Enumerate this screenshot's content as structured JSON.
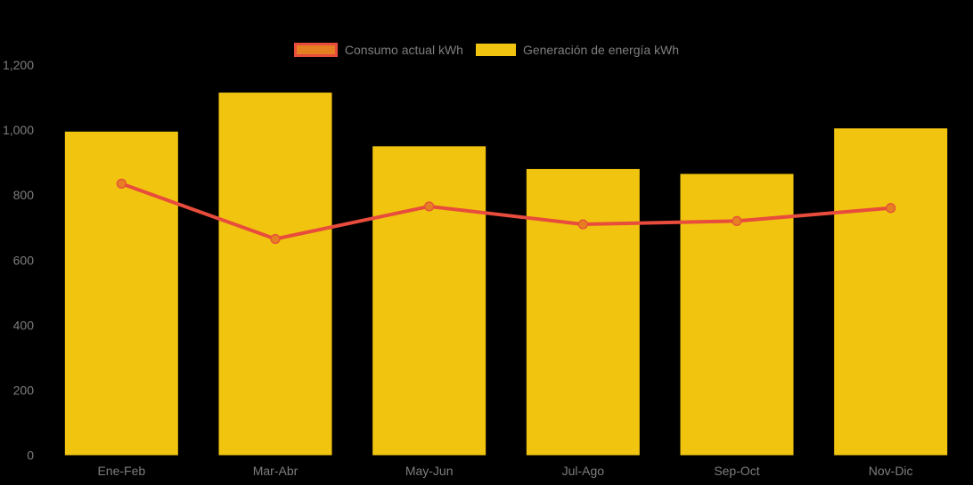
{
  "chart_data": {
    "type": "combo-bar-line",
    "categories": [
      "Ene-Feb",
      "Mar-Abr",
      "May-Jun",
      "Jul-Ago",
      "Sep-Oct",
      "Nov-Dic"
    ],
    "series": [
      {
        "name": "Consumo actual kWh",
        "type": "line",
        "values": [
          835,
          665,
          765,
          710,
          720,
          760
        ],
        "color": "#E74C3C",
        "marker_color": "#E67E22"
      },
      {
        "name": "Generación de energía kWh",
        "type": "bar",
        "values": [
          995,
          1115,
          950,
          880,
          865,
          1005
        ],
        "color": "#F1C40F"
      }
    ],
    "title": "",
    "xlabel": "",
    "ylabel": "",
    "ylim": [
      0,
      1200
    ],
    "yticks": [
      {
        "value": 0,
        "label": "0"
      },
      {
        "value": 200,
        "label": "200"
      },
      {
        "value": 400,
        "label": "400"
      },
      {
        "value": 600,
        "label": "600"
      },
      {
        "value": 800,
        "label": "800"
      },
      {
        "value": 1000,
        "label": "1,000"
      },
      {
        "value": 1200,
        "label": "1,200"
      }
    ],
    "grid": false,
    "legend_position": "top-center",
    "background_color": "#000000",
    "text_color": "#7E7E7E"
  }
}
